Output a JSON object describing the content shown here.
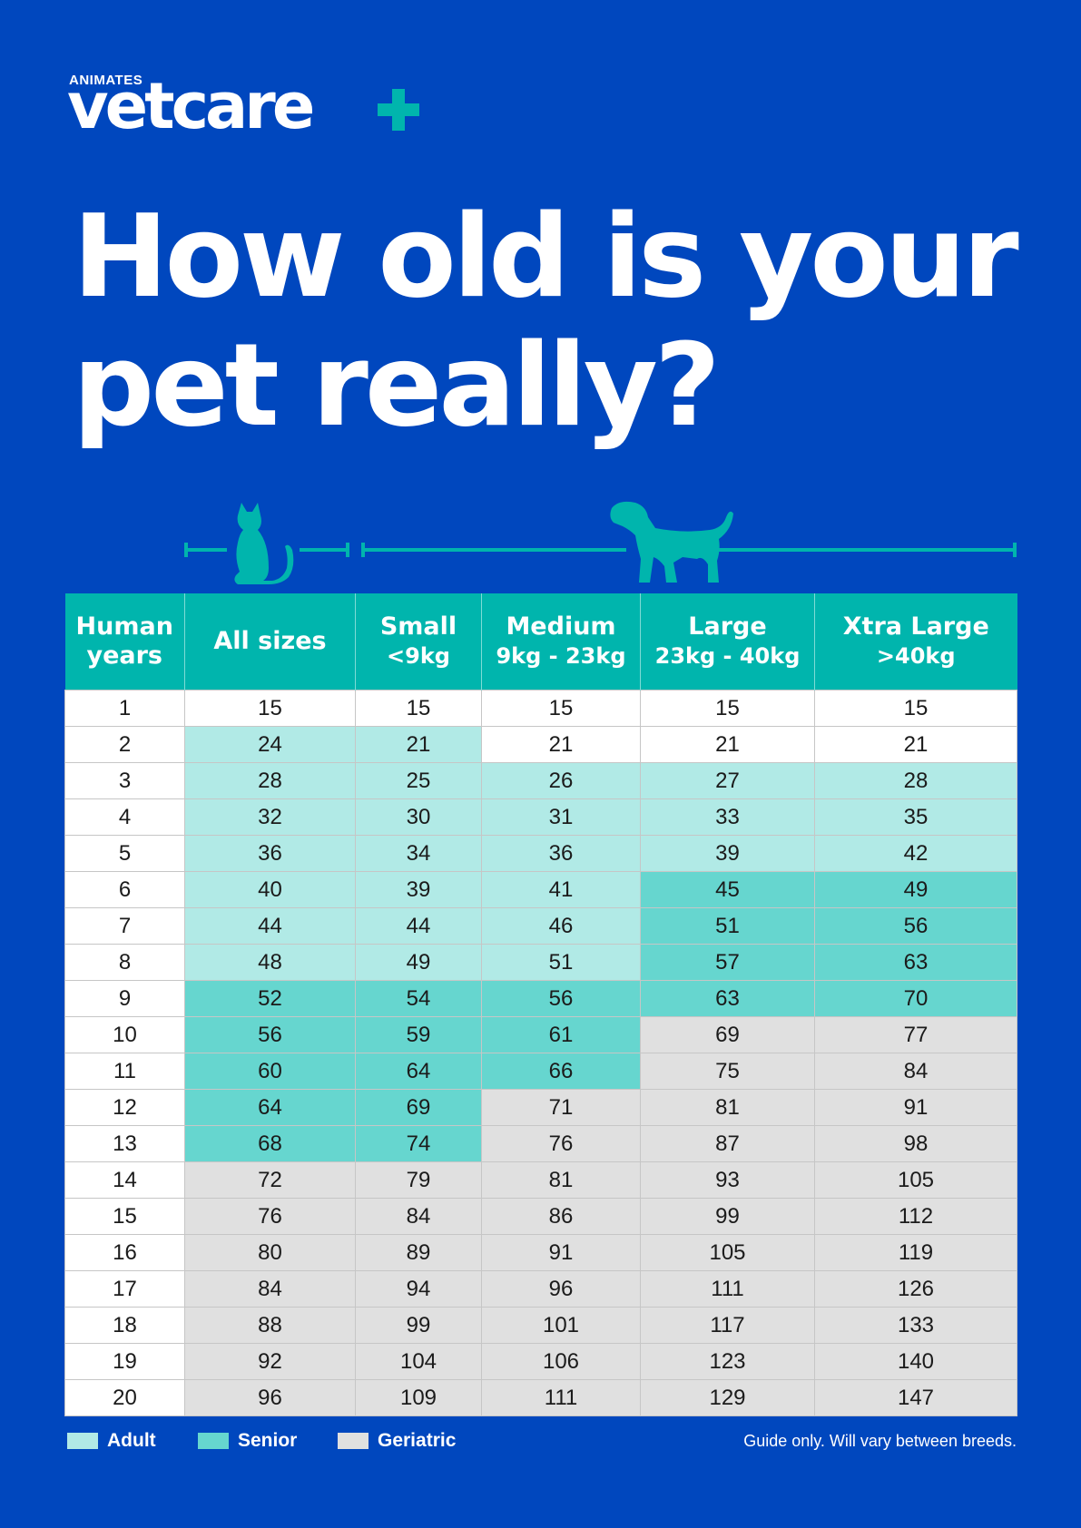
{
  "brand": {
    "small": "ANIMATES",
    "name": "vetcare",
    "accent": "#00b5ad"
  },
  "headline": {
    "line1": "How old is your",
    "line2": "pet really?"
  },
  "icons": {
    "cat": "cat-silhouette",
    "dog": "dog-silhouette"
  },
  "table": {
    "headers": [
      {
        "title": "Human years",
        "sub": ""
      },
      {
        "title": "All sizes",
        "sub": ""
      },
      {
        "title": "Small",
        "sub": "<9kg"
      },
      {
        "title": "Medium",
        "sub": "9kg - 23kg"
      },
      {
        "title": "Large",
        "sub": "23kg - 40kg"
      },
      {
        "title": "Xtra Large",
        "sub": ">40kg"
      }
    ],
    "rows": [
      [
        "1",
        "15",
        "15",
        "15",
        "15",
        "15"
      ],
      [
        "2",
        "24",
        "21",
        "21",
        "21",
        "21"
      ],
      [
        "3",
        "28",
        "25",
        "26",
        "27",
        "28"
      ],
      [
        "4",
        "32",
        "30",
        "31",
        "33",
        "35"
      ],
      [
        "5",
        "36",
        "34",
        "36",
        "39",
        "42"
      ],
      [
        "6",
        "40",
        "39",
        "41",
        "45",
        "49"
      ],
      [
        "7",
        "44",
        "44",
        "46",
        "51",
        "56"
      ],
      [
        "8",
        "48",
        "49",
        "51",
        "57",
        "63"
      ],
      [
        "9",
        "52",
        "54",
        "56",
        "63",
        "70"
      ],
      [
        "10",
        "56",
        "59",
        "61",
        "69",
        "77"
      ],
      [
        "11",
        "60",
        "64",
        "66",
        "75",
        "84"
      ],
      [
        "12",
        "64",
        "69",
        "71",
        "81",
        "91"
      ],
      [
        "13",
        "68",
        "74",
        "76",
        "87",
        "98"
      ],
      [
        "14",
        "72",
        "79",
        "81",
        "93",
        "105"
      ],
      [
        "15",
        "76",
        "84",
        "86",
        "99",
        "112"
      ],
      [
        "16",
        "80",
        "89",
        "91",
        "105",
        "119"
      ],
      [
        "17",
        "84",
        "94",
        "96",
        "111",
        "126"
      ],
      [
        "18",
        "88",
        "99",
        "101",
        "117",
        "133"
      ],
      [
        "19",
        "92",
        "104",
        "106",
        "123",
        "140"
      ],
      [
        "20",
        "96",
        "109",
        "111",
        "129",
        "147"
      ]
    ],
    "stages": [
      [
        "w",
        "w",
        "w",
        "w",
        "w",
        "w"
      ],
      [
        "w",
        "a",
        "a",
        "w",
        "w",
        "w"
      ],
      [
        "w",
        "a",
        "a",
        "a",
        "a",
        "a"
      ],
      [
        "w",
        "a",
        "a",
        "a",
        "a",
        "a"
      ],
      [
        "w",
        "a",
        "a",
        "a",
        "a",
        "a"
      ],
      [
        "w",
        "a",
        "a",
        "a",
        "s",
        "s"
      ],
      [
        "w",
        "a",
        "a",
        "a",
        "s",
        "s"
      ],
      [
        "w",
        "a",
        "a",
        "a",
        "s",
        "s"
      ],
      [
        "w",
        "s",
        "s",
        "s",
        "s",
        "s"
      ],
      [
        "w",
        "s",
        "s",
        "s",
        "g",
        "g"
      ],
      [
        "w",
        "s",
        "s",
        "s",
        "g",
        "g"
      ],
      [
        "w",
        "s",
        "s",
        "g",
        "g",
        "g"
      ],
      [
        "w",
        "s",
        "s",
        "g",
        "g",
        "g"
      ],
      [
        "w",
        "g",
        "g",
        "g",
        "g",
        "g"
      ],
      [
        "w",
        "g",
        "g",
        "g",
        "g",
        "g"
      ],
      [
        "w",
        "g",
        "g",
        "g",
        "g",
        "g"
      ],
      [
        "w",
        "g",
        "g",
        "g",
        "g",
        "g"
      ],
      [
        "w",
        "g",
        "g",
        "g",
        "g",
        "g"
      ],
      [
        "w",
        "g",
        "g",
        "g",
        "g",
        "g"
      ],
      [
        "w",
        "g",
        "g",
        "g",
        "g",
        "g"
      ]
    ]
  },
  "legend": [
    {
      "label": "Adult",
      "color": "#b1eae6"
    },
    {
      "label": "Senior",
      "color": "#66d6cf"
    },
    {
      "label": "Geriatric",
      "color": "#e0e0e0"
    }
  ],
  "note": "Guide only. Will vary between breeds."
}
